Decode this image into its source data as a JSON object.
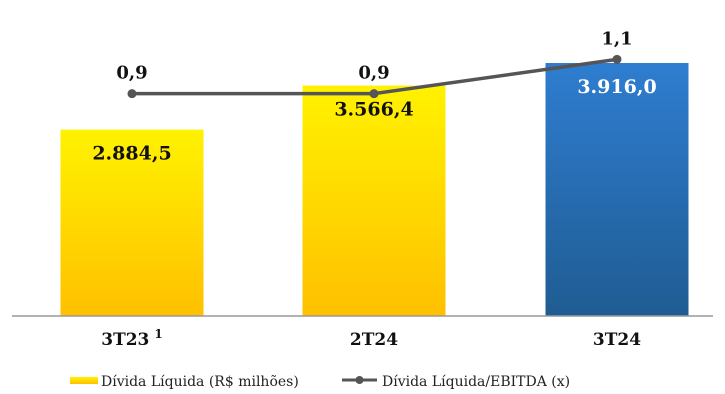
{
  "chart_data": {
    "type": "bar",
    "categories": [
      "3T23",
      "2T24",
      "3T24"
    ],
    "category_labels": [
      {
        "main": "3T23",
        "sup": "1"
      },
      {
        "main": "2T24",
        "sup": ""
      },
      {
        "main": "3T24",
        "sup": ""
      }
    ],
    "series": [
      {
        "name": "Dívida Líquida (R$ milhões)",
        "type": "bar",
        "values": [
          2884.5,
          3566.4,
          3916.0
        ],
        "labels": [
          "2.884,5",
          "3.566,4",
          "3.916,0"
        ]
      },
      {
        "name": "Dívida Líquida/EBITDA (x)",
        "type": "line",
        "values": [
          0.9,
          0.9,
          1.1
        ],
        "labels": [
          "0,9",
          "0,9",
          "1,1"
        ]
      }
    ],
    "legend_position": "bottom",
    "grid": false,
    "colors": {
      "bar_yellow_top": "#FFF200",
      "bar_yellow_bottom": "#FFC000",
      "bar_blue_top": "#2F7DD0",
      "bar_blue_bottom": "#1F5C93",
      "line": "#555555",
      "axis": "#999999"
    }
  }
}
